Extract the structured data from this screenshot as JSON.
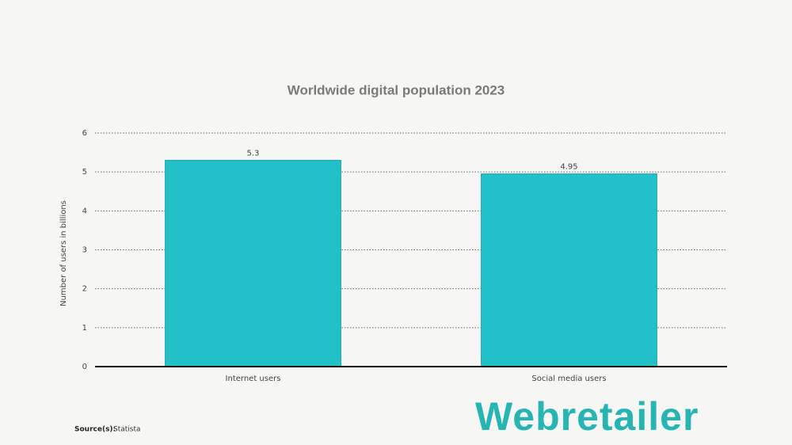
{
  "chart_data": {
    "type": "bar",
    "title": "Worldwide digital population 2023",
    "y_label": "Number of users in billions",
    "categories": [
      "Internet users",
      "Social media users"
    ],
    "values": [
      5.3,
      4.95
    ],
    "color": "#22c0c8",
    "ylim": [
      0,
      6
    ],
    "yticks": [
      0,
      1,
      2,
      3,
      4,
      5,
      6
    ],
    "grid": true
  },
  "source_label": "Source(s):",
  "source": "Statista",
  "logo": "Webretailer"
}
